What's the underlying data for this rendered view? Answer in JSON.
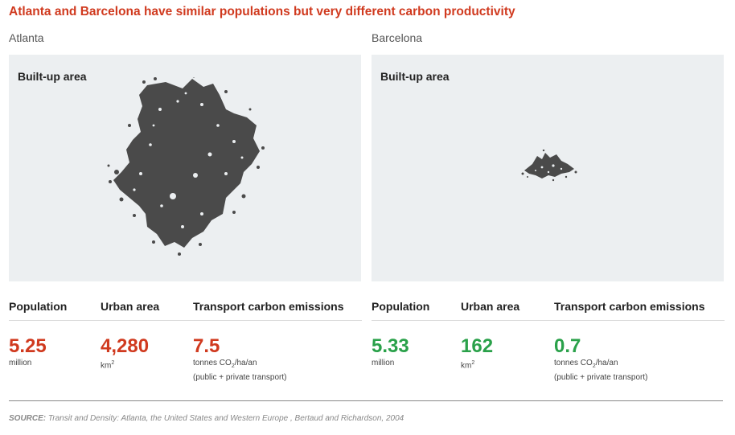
{
  "title": "Atlanta and Barcelona have similar populations but very different carbon productivity",
  "map_label": "Built-up area",
  "stat_headers": [
    "Population",
    "Urban area",
    "Transport carbon emissions"
  ],
  "cities": [
    {
      "name": "Atlanta",
      "accent": "#d03a1f",
      "population": {
        "value": "5.25",
        "unit": "million"
      },
      "urban_area": {
        "value": "4,280",
        "unit": "km",
        "unit_sup": "2"
      },
      "emissions": {
        "value": "7.5",
        "unit_pre": "tonnes CO",
        "unit_sub": "2",
        "unit_post": "/ha/an",
        "note": "(public + private transport)"
      }
    },
    {
      "name": "Barcelona",
      "accent": "#2aa14a",
      "population": {
        "value": "5.33",
        "unit": "million"
      },
      "urban_area": {
        "value": "162",
        "unit": "km",
        "unit_sup": "2"
      },
      "emissions": {
        "value": "0.7",
        "unit_pre": "tonnes CO",
        "unit_sub": "2",
        "unit_post": "/ha/an",
        "note": "(public + private transport)"
      }
    }
  ],
  "source": {
    "label": "SOURCE:",
    "text": " Transit and Density: Atlanta, the United States and Western Europe , Bertaud and Richardson, 2004"
  }
}
